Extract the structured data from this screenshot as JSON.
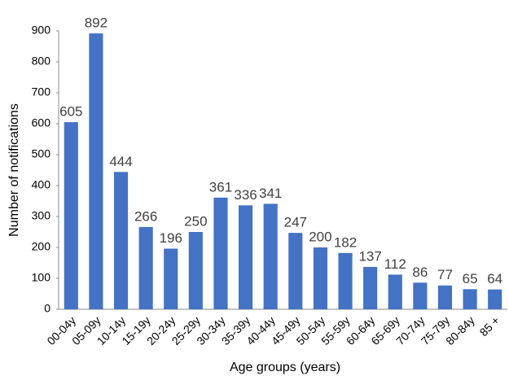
{
  "chart_data": {
    "type": "bar",
    "x_label": "Age groups (years)",
    "y_label": "Number of notifications",
    "categories": [
      "00-04y",
      "05-09y",
      "10-14y",
      "15-19y",
      "20-24y",
      "25-29y",
      "30-34y",
      "35-39y",
      "40-44y",
      "45-49y",
      "50-54y",
      "55-59y",
      "60-64y",
      "65-69y",
      "70-74y",
      "75-79y",
      "80-84y",
      "85 +"
    ],
    "values": [
      605,
      892,
      444,
      266,
      196,
      250,
      361,
      336,
      341,
      247,
      200,
      182,
      137,
      112,
      86,
      77,
      65,
      64
    ],
    "color": "#4472c4",
    "ylim": [
      0,
      900
    ],
    "yticks": [
      0,
      100,
      200,
      300,
      400,
      500,
      600,
      700,
      800,
      900
    ],
    "grid": false
  }
}
